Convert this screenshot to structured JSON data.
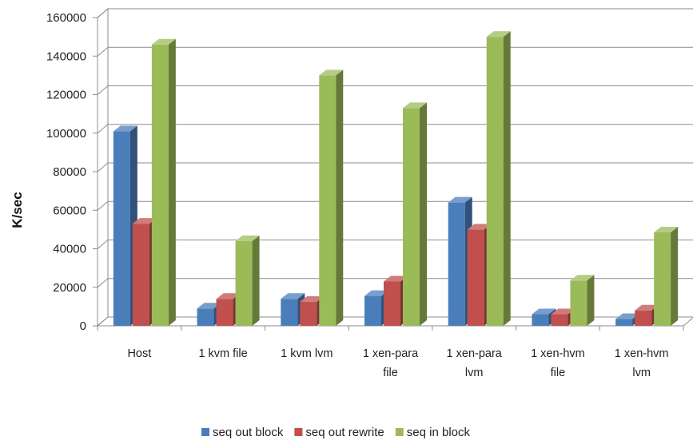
{
  "chart_data": {
    "type": "bar",
    "style": "3d-clustered-column",
    "ylabel": "K/sec",
    "ylim": [
      0,
      160000
    ],
    "yticks": [
      "0",
      "20000",
      "40000",
      "60000",
      "80000",
      "100000",
      "120000",
      "140000",
      "160000"
    ],
    "grid": true,
    "legend_position": "bottom",
    "categories": [
      [
        "Host"
      ],
      [
        "1 kvm file"
      ],
      [
        "1 kvm lvm"
      ],
      [
        "1 xen-para",
        "file"
      ],
      [
        "1 xen-para",
        "lvm"
      ],
      [
        "1 xen-hvm",
        "file"
      ],
      [
        "1 xen-hvm",
        "lvm"
      ]
    ],
    "series": [
      {
        "name": "seq out block",
        "color": "#4a7ebb",
        "values": [
          101000,
          9000,
          14000,
          15500,
          64000,
          6000,
          3500
        ]
      },
      {
        "name": "seq out rewrite",
        "color": "#c0504d",
        "values": [
          53000,
          14000,
          12500,
          23000,
          50000,
          6000,
          8000
        ]
      },
      {
        "name": "seq in block",
        "color": "#9bbb59",
        "values": [
          146000,
          44000,
          130000,
          113000,
          150000,
          23500,
          48500
        ]
      }
    ]
  }
}
